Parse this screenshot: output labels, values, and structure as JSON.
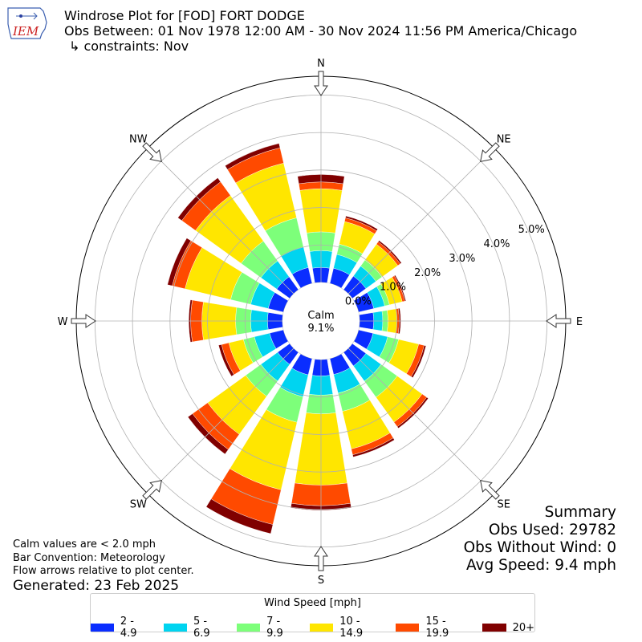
{
  "header": {
    "title": "Windrose Plot for [FOD] FORT DODGE",
    "obs_between": "Obs Between: 01 Nov 1978 12:00 AM - 30 Nov 2024 11:56 PM America/Chicago",
    "constraints": "↳ constraints: Nov",
    "logo_text": "IEM"
  },
  "summary": {
    "heading": "Summary",
    "obs_used": "Obs Used: 29782",
    "obs_without_wind": "Obs Without Wind: 0",
    "avg_speed": "Avg Speed: 9.4 mph"
  },
  "notes": {
    "calm_note": "Calm values are < 2.0 mph",
    "bar_convention": "Bar Convention: Meteorology",
    "flow_arrows": "Flow arrows relative to plot center.",
    "generated": "Generated: 23 Feb 2025"
  },
  "chart_data": {
    "type": "windrose",
    "calm_label": "Calm",
    "calm_value": "9.1%",
    "directions": [
      "N",
      "NNE",
      "NE",
      "ENE",
      "E",
      "ESE",
      "SE",
      "SSE",
      "S",
      "SSW",
      "SW",
      "WSW",
      "W",
      "WNW",
      "NW",
      "NNW"
    ],
    "direction_labels": [
      "N",
      "NE",
      "E",
      "SE",
      "S",
      "SW",
      "W",
      "NW"
    ],
    "radial_ticks": [
      0,
      1,
      2,
      3,
      4,
      5
    ],
    "radial_tick_labels": [
      "0.0%",
      "1.0%",
      "2.0%",
      "3.0%",
      "4.0%",
      "5.0%"
    ],
    "radial_max": 5.5,
    "legend_title": "Wind Speed [mph]",
    "speed_bins": [
      "2 - 4.9",
      "5 - 6.9",
      "7 - 9.9",
      "10 - 14.9",
      "15 - 19.9",
      "20+"
    ],
    "bin_colors": [
      "#0a2dff",
      "#00d4f0",
      "#7dff7a",
      "#ffe600",
      "#ff4a00",
      "#800000"
    ],
    "cumulative_percent": [
      [
        0.4,
        0.85,
        1.35,
        2.5,
        2.68,
        2.88
      ],
      [
        0.42,
        0.8,
        1.08,
        1.7,
        1.8,
        1.85
      ],
      [
        0.45,
        0.78,
        0.98,
        1.5,
        1.58,
        1.62
      ],
      [
        0.42,
        0.72,
        0.85,
        1.2,
        1.27,
        1.3
      ],
      [
        0.38,
        0.62,
        0.76,
        1.0,
        1.06,
        1.1
      ],
      [
        0.4,
        0.8,
        1.1,
        1.65,
        1.8,
        1.85
      ],
      [
        0.45,
        0.95,
        1.48,
        2.3,
        2.45,
        2.5
      ],
      [
        0.44,
        0.95,
        1.45,
        2.48,
        2.64,
        2.7
      ],
      [
        0.44,
        0.95,
        1.45,
        3.35,
        3.9,
        4.02
      ],
      [
        0.45,
        1.05,
        1.75,
        3.6,
        4.55,
        4.8
      ],
      [
        0.4,
        0.95,
        1.45,
        2.7,
        3.2,
        3.35
      ],
      [
        0.38,
        0.8,
        1.1,
        1.5,
        1.7,
        1.78
      ],
      [
        0.4,
        0.85,
        1.25,
        2.15,
        2.45,
        2.5
      ],
      [
        0.42,
        0.9,
        1.45,
        2.7,
        3.05,
        3.18
      ],
      [
        0.43,
        0.95,
        1.6,
        3.1,
        3.55,
        3.68
      ],
      [
        0.44,
        1.0,
        1.8,
        3.3,
        3.72,
        3.84
      ]
    ]
  }
}
